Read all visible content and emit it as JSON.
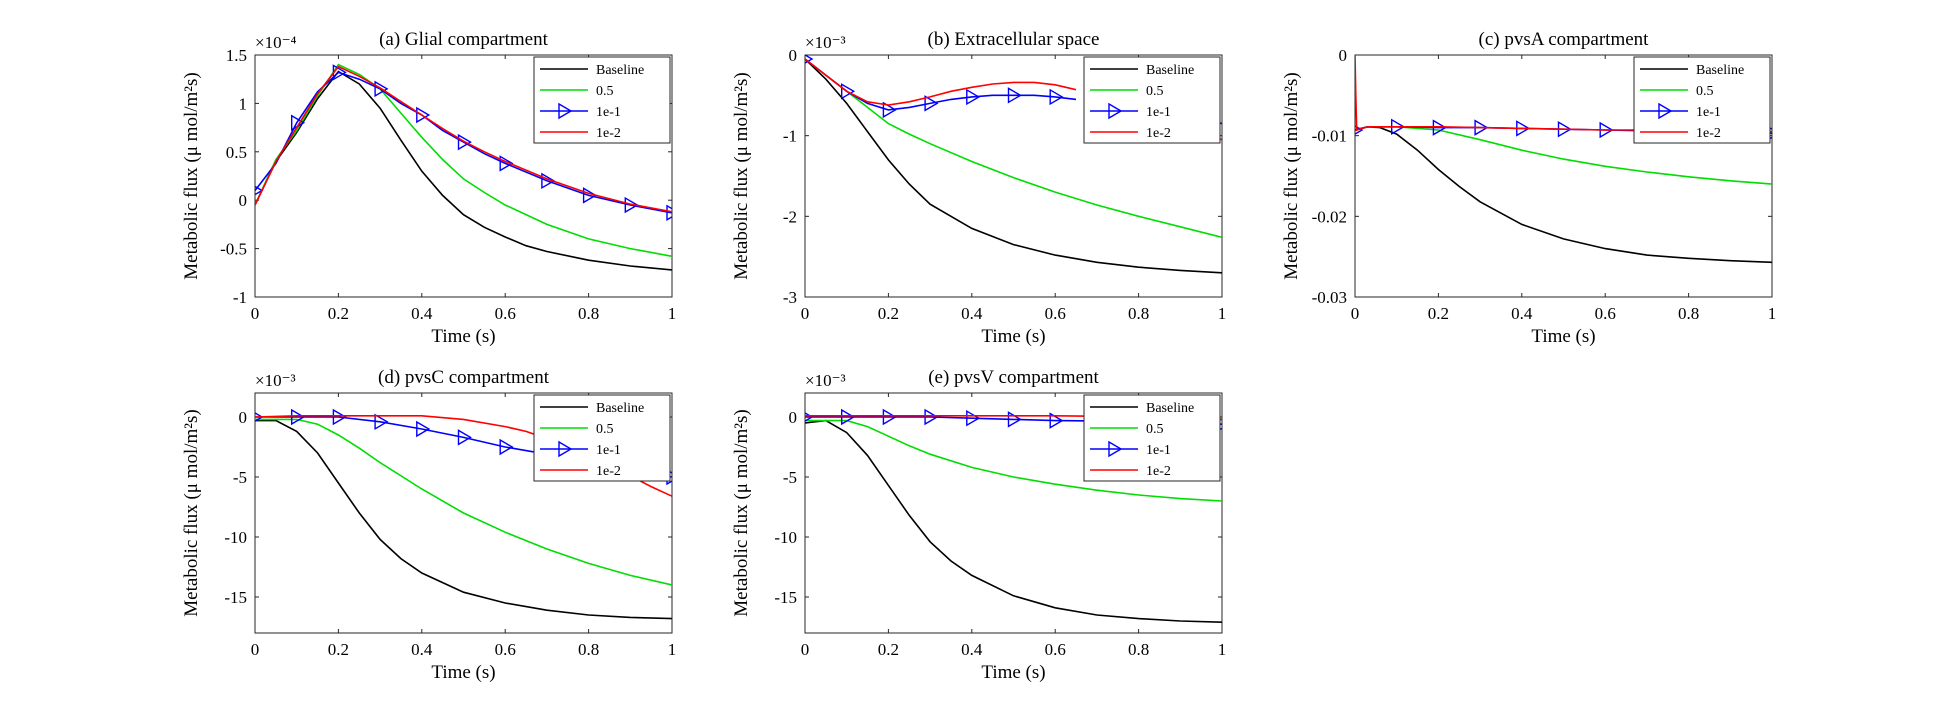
{
  "chart_data": [
    {
      "type": "line",
      "title": "(a) Glial compartment",
      "xlabel": "Time (s)",
      "ylabel": "Metabolic flux (μ mol/m²s)",
      "exponent": "×10⁻⁴",
      "xlim": [
        0,
        1
      ],
      "ylim": [
        -1,
        1.5
      ],
      "xticks": [
        0,
        0.2,
        0.4,
        0.6,
        0.8,
        1
      ],
      "xtick_labels": [
        "0",
        "0.2",
        "0.4",
        "0.6",
        "0.8",
        "1"
      ],
      "yticks": [
        -1,
        -0.5,
        0,
        0.5,
        1,
        1.5
      ],
      "ytick_labels": [
        "-1",
        "-0.5",
        "0",
        "0.5",
        "1",
        "1.5"
      ],
      "legend_position": "top-right",
      "series": [
        {
          "name": "Baseline",
          "color": "#000000",
          "x": [
            0,
            0.05,
            0.1,
            0.15,
            0.2,
            0.25,
            0.3,
            0.35,
            0.4,
            0.45,
            0.5,
            0.55,
            0.6,
            0.65,
            0.7,
            0.8,
            0.9,
            1.0
          ],
          "y": [
            -0.05,
            0.4,
            0.7,
            1.05,
            1.33,
            1.2,
            0.95,
            0.62,
            0.3,
            0.05,
            -0.15,
            -0.28,
            -0.38,
            -0.47,
            -0.53,
            -0.62,
            -0.68,
            -0.72
          ]
        },
        {
          "name": "0.5",
          "color": "#00dd00",
          "x": [
            0,
            0.05,
            0.1,
            0.15,
            0.2,
            0.25,
            0.3,
            0.35,
            0.4,
            0.45,
            0.5,
            0.55,
            0.6,
            0.7,
            0.8,
            0.9,
            1.0
          ],
          "y": [
            -0.05,
            0.42,
            0.72,
            1.08,
            1.4,
            1.3,
            1.15,
            0.9,
            0.65,
            0.42,
            0.22,
            0.08,
            -0.05,
            -0.25,
            -0.4,
            -0.5,
            -0.58
          ]
        },
        {
          "name": "1e-1",
          "color": "#0000ff",
          "marker": "triangle-right",
          "x": [
            0,
            0.05,
            0.1,
            0.15,
            0.2,
            0.25,
            0.3,
            0.35,
            0.4,
            0.45,
            0.5,
            0.55,
            0.6,
            0.7,
            0.8,
            0.9,
            1.0
          ],
          "y": [
            0.1,
            0.38,
            0.8,
            1.12,
            1.32,
            1.25,
            1.15,
            1.0,
            0.88,
            0.72,
            0.6,
            0.48,
            0.38,
            0.2,
            0.05,
            -0.05,
            -0.13
          ]
        },
        {
          "name": "1e-2",
          "color": "#ff0000",
          "x": [
            0,
            0.05,
            0.1,
            0.15,
            0.2,
            0.25,
            0.3,
            0.35,
            0.4,
            0.45,
            0.5,
            0.55,
            0.6,
            0.7,
            0.8,
            0.9,
            1.0
          ],
          "y": [
            -0.05,
            0.4,
            0.75,
            1.1,
            1.38,
            1.28,
            1.16,
            1.02,
            0.88,
            0.74,
            0.61,
            0.5,
            0.4,
            0.22,
            0.07,
            -0.04,
            -0.12
          ]
        }
      ]
    },
    {
      "type": "line",
      "title": "(b) Extracellular space",
      "xlabel": "Time (s)",
      "ylabel": "Metabolic flux (μ mol/m²s)",
      "exponent": "×10⁻³",
      "xlim": [
        0,
        1
      ],
      "ylim": [
        -3,
        0
      ],
      "xticks": [
        0,
        0.2,
        0.4,
        0.6,
        0.8,
        1
      ],
      "xtick_labels": [
        "0",
        "0.2",
        "0.4",
        "0.6",
        "0.8",
        "1"
      ],
      "yticks": [
        -3,
        -2,
        -1,
        0
      ],
      "ytick_labels": [
        "-3",
        "-2",
        "-1",
        "0"
      ],
      "legend_position": "top-right",
      "series": [
        {
          "name": "Baseline",
          "color": "#000000",
          "x": [
            0,
            0.05,
            0.1,
            0.15,
            0.2,
            0.25,
            0.3,
            0.4,
            0.5,
            0.6,
            0.7,
            0.8,
            0.9,
            1.0
          ],
          "y": [
            -0.05,
            -0.3,
            -0.6,
            -0.95,
            -1.3,
            -1.6,
            -1.85,
            -2.15,
            -2.35,
            -2.48,
            -2.57,
            -2.63,
            -2.67,
            -2.7
          ]
        },
        {
          "name": "0.5",
          "color": "#00dd00",
          "x": [
            0,
            0.05,
            0.1,
            0.15,
            0.2,
            0.25,
            0.3,
            0.4,
            0.5,
            0.6,
            0.7,
            0.8,
            0.9,
            1.0
          ],
          "y": [
            -0.05,
            -0.25,
            -0.45,
            -0.65,
            -0.85,
            -0.98,
            -1.1,
            -1.32,
            -1.52,
            -1.7,
            -1.86,
            -2.0,
            -2.13,
            -2.26
          ]
        },
        {
          "name": "1e-1",
          "color": "#0000ff",
          "marker": "triangle-right",
          "x": [
            0,
            0.05,
            0.1,
            0.15,
            0.2,
            0.25,
            0.3,
            0.35,
            0.4,
            0.45,
            0.5,
            0.55,
            0.6,
            0.65
          ],
          "y": [
            -0.05,
            -0.25,
            -0.45,
            -0.6,
            -0.68,
            -0.65,
            -0.6,
            -0.55,
            -0.52,
            -0.5,
            -0.5,
            -0.5,
            -0.52,
            -0.55
          ]
        },
        {
          "name": "1e-2",
          "color": "#ff0000",
          "x": [
            0,
            0.05,
            0.1,
            0.15,
            0.2,
            0.25,
            0.3,
            0.35,
            0.4,
            0.45,
            0.5,
            0.55,
            0.6,
            0.65
          ],
          "y": [
            -0.05,
            -0.25,
            -0.45,
            -0.58,
            -0.62,
            -0.58,
            -0.52,
            -0.45,
            -0.4,
            -0.36,
            -0.34,
            -0.34,
            -0.37,
            -0.43
          ]
        },
        {
          "name": "",
          "color": "#0000ff",
          "x": [
            0.9,
            0.95,
            1.0
          ],
          "y": [
            -0.72,
            -0.78,
            -0.85
          ]
        },
        {
          "name": "",
          "color": "#ff0000",
          "x": [
            0.9,
            0.95,
            1.0
          ],
          "y": [
            -0.85,
            -0.95,
            -1.05
          ]
        }
      ]
    },
    {
      "type": "line",
      "title": "(c) pvsA compartment",
      "xlabel": "Time (s)",
      "ylabel": "Metabolic flux (μ mol/m²s)",
      "exponent": "",
      "xlim": [
        0,
        1
      ],
      "ylim": [
        -0.03,
        0
      ],
      "xticks": [
        0,
        0.2,
        0.4,
        0.6,
        0.8,
        1
      ],
      "xtick_labels": [
        "0",
        "0.2",
        "0.4",
        "0.6",
        "0.8",
        "1"
      ],
      "yticks": [
        -0.03,
        -0.02,
        -0.01,
        0
      ],
      "ytick_labels": [
        "-0.03",
        "-0.02",
        "-0.01",
        "0"
      ],
      "legend_position": "top-right",
      "series": [
        {
          "name": "Baseline",
          "color": "#000000",
          "x": [
            0,
            0.03,
            0.06,
            0.1,
            0.15,
            0.2,
            0.25,
            0.3,
            0.4,
            0.5,
            0.6,
            0.7,
            0.8,
            0.9,
            1.0
          ],
          "y": [
            -0.0093,
            -0.0089,
            -0.009,
            -0.0098,
            -0.0118,
            -0.0142,
            -0.0163,
            -0.0182,
            -0.021,
            -0.0228,
            -0.024,
            -0.0248,
            -0.0252,
            -0.0255,
            -0.0257
          ]
        },
        {
          "name": "0.5",
          "color": "#00dd00",
          "x": [
            0,
            0.03,
            0.1,
            0.2,
            0.3,
            0.4,
            0.5,
            0.6,
            0.7,
            0.8,
            0.9,
            1.0
          ],
          "y": [
            -0.0093,
            -0.0089,
            -0.0089,
            -0.0093,
            -0.0105,
            -0.0118,
            -0.0129,
            -0.0138,
            -0.0145,
            -0.0151,
            -0.0156,
            -0.016
          ]
        },
        {
          "name": "1e-1",
          "color": "#0000ff",
          "marker": "triangle-right",
          "x": [
            0,
            0.03,
            0.1,
            0.2,
            0.3,
            0.4,
            0.5,
            0.6,
            0.7,
            0.8,
            0.9,
            1.0
          ],
          "y": [
            -0.0093,
            -0.0089,
            -0.0089,
            -0.009,
            -0.009,
            -0.0091,
            -0.0092,
            -0.0093,
            -0.0094,
            -0.0095,
            -0.0096,
            -0.0097
          ]
        },
        {
          "name": "1e-2",
          "color": "#ff0000",
          "x": [
            0,
            0.002,
            0.004,
            0.03,
            0.1,
            0.2,
            0.3,
            0.4,
            0.5,
            0.6,
            0.7,
            0.8,
            0.9,
            1.0
          ],
          "y": [
            0,
            -0.005,
            -0.0093,
            -0.0089,
            -0.0089,
            -0.0089,
            -0.009,
            -0.0091,
            -0.0092,
            -0.0093,
            -0.0093,
            -0.0094,
            -0.0094,
            -0.0095
          ]
        }
      ]
    },
    {
      "type": "line",
      "title": "(d) pvsC compartment",
      "xlabel": "Time (s)",
      "ylabel": "Metabolic flux (μ mol/m²s)",
      "exponent": "×10⁻³",
      "xlim": [
        0,
        1
      ],
      "ylim": [
        -18,
        2
      ],
      "xticks": [
        0,
        0.2,
        0.4,
        0.6,
        0.8,
        1
      ],
      "xtick_labels": [
        "0",
        "0.2",
        "0.4",
        "0.6",
        "0.8",
        "1"
      ],
      "yticks": [
        -15,
        -10,
        -5,
        0
      ],
      "ytick_labels": [
        "-15",
        "-10",
        "-5",
        "0"
      ],
      "legend_position": "top-right",
      "series": [
        {
          "name": "Baseline",
          "color": "#000000",
          "x": [
            0,
            0.05,
            0.1,
            0.15,
            0.2,
            0.25,
            0.3,
            0.35,
            0.4,
            0.5,
            0.6,
            0.7,
            0.8,
            0.9,
            1.0
          ],
          "y": [
            -0.3,
            -0.3,
            -1.2,
            -3.0,
            -5.5,
            -8.0,
            -10.2,
            -11.8,
            -13.0,
            -14.6,
            -15.5,
            -16.1,
            -16.5,
            -16.7,
            -16.8
          ]
        },
        {
          "name": "0.5",
          "color": "#00dd00",
          "x": [
            0,
            0.1,
            0.15,
            0.2,
            0.25,
            0.3,
            0.4,
            0.5,
            0.6,
            0.7,
            0.8,
            0.9,
            1.0
          ],
          "y": [
            -0.2,
            -0.2,
            -0.6,
            -1.5,
            -2.6,
            -3.8,
            -6.0,
            -8.0,
            -9.6,
            -11.0,
            -12.2,
            -13.2,
            -14.0
          ]
        },
        {
          "name": "1e-1",
          "color": "#0000ff",
          "marker": "triangle-right",
          "x": [
            0,
            0.1,
            0.2,
            0.3,
            0.4,
            0.5,
            0.6,
            0.65,
            0.75,
            0.85,
            0.9,
            0.95,
            1.0
          ],
          "y": [
            0,
            0,
            0,
            -0.4,
            -1.0,
            -1.7,
            -2.5,
            -2.8,
            -3.4,
            -4.0,
            -4.4,
            -4.7,
            -5.0
          ]
        },
        {
          "name": "1e-2",
          "color": "#ff0000",
          "x": [
            0,
            0.1,
            0.2,
            0.3,
            0.4,
            0.5,
            0.6,
            0.65,
            0.75,
            0.85,
            0.9,
            0.95,
            1.0
          ],
          "y": [
            0,
            0.1,
            0.1,
            0.1,
            0.1,
            -0.2,
            -0.8,
            -1.2,
            -2.4,
            -4.0,
            -4.9,
            -5.8,
            -6.6
          ]
        }
      ]
    },
    {
      "type": "line",
      "title": "(e) pvsV compartment",
      "xlabel": "Time (s)",
      "ylabel": "Metabolic flux (μ mol/m²s)",
      "exponent": "×10⁻³",
      "xlim": [
        0,
        1
      ],
      "ylim": [
        -18,
        2
      ],
      "xticks": [
        0,
        0.2,
        0.4,
        0.6,
        0.8,
        1
      ],
      "xtick_labels": [
        "0",
        "0.2",
        "0.4",
        "0.6",
        "0.8",
        "1"
      ],
      "yticks": [
        -15,
        -10,
        -5,
        0
      ],
      "ytick_labels": [
        "-15",
        "-10",
        "-5",
        "0"
      ],
      "legend_position": "top-right",
      "series": [
        {
          "name": "Baseline",
          "color": "#000000",
          "x": [
            0,
            0.05,
            0.1,
            0.15,
            0.2,
            0.25,
            0.3,
            0.35,
            0.4,
            0.5,
            0.6,
            0.7,
            0.8,
            0.9,
            1.0
          ],
          "y": [
            -0.5,
            -0.3,
            -1.3,
            -3.2,
            -5.7,
            -8.2,
            -10.4,
            -12.0,
            -13.2,
            -14.9,
            -15.9,
            -16.5,
            -16.8,
            -17.0,
            -17.1
          ]
        },
        {
          "name": "0.5",
          "color": "#00dd00",
          "x": [
            0,
            0.1,
            0.15,
            0.2,
            0.25,
            0.3,
            0.4,
            0.5,
            0.6,
            0.7,
            0.8,
            0.9,
            1.0
          ],
          "y": [
            -0.3,
            -0.3,
            -0.8,
            -1.6,
            -2.4,
            -3.1,
            -4.2,
            -5.0,
            -5.6,
            -6.1,
            -6.5,
            -6.8,
            -7.0
          ]
        },
        {
          "name": "1e-1",
          "color": "#0000ff",
          "marker": "triangle-right",
          "x": [
            0,
            0.1,
            0.2,
            0.3,
            0.4,
            0.5,
            0.6,
            0.9,
            0.95,
            1.0
          ],
          "y": [
            0,
            0,
            0,
            0,
            -0.1,
            -0.2,
            -0.3,
            -0.4,
            -0.5,
            -0.6
          ]
        },
        {
          "name": "1e-2",
          "color": "#ff0000",
          "x": [
            0,
            0.1,
            0.2,
            0.3,
            0.4,
            0.5,
            0.6,
            0.9,
            0.95,
            1.0
          ],
          "y": [
            0.1,
            0.1,
            0.1,
            0.1,
            0.1,
            0.1,
            0.1,
            0,
            -0.1,
            -0.2
          ]
        }
      ]
    }
  ]
}
